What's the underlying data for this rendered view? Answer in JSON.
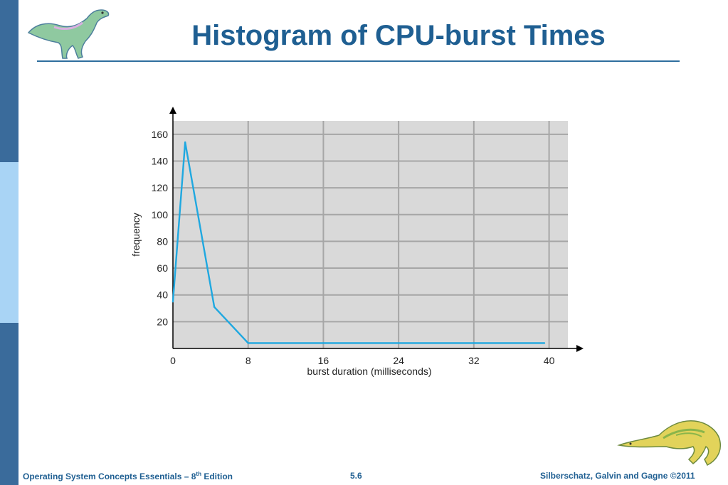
{
  "slide": {
    "title": "Histogram of CPU-burst Times",
    "footer_left_prefix": "Operating System Concepts Essentials – 8",
    "footer_left_sup": "th",
    "footer_left_suffix": " Edition",
    "footer_center": "5.6",
    "footer_right": "Silberschatz, Galvin and Gagne ©2011"
  },
  "logos": {
    "top_left": "dinosaur-icon",
    "bottom_right": "dinosaur-icon"
  },
  "colors": {
    "title": "#1f5f92",
    "sidebar_dark": "#3a6b9b",
    "sidebar_light": "#a9d4f5",
    "plot_background": "#d9d9d9",
    "grid": "#a6a6a6",
    "line": "#1fa8e0"
  },
  "chart_data": {
    "type": "line",
    "xlabel": "burst duration (milliseconds)",
    "ylabel": "frequency",
    "xlim": [
      0,
      42
    ],
    "ylim": [
      0,
      170
    ],
    "xticks": [
      0,
      8,
      16,
      24,
      32,
      40
    ],
    "yticks": [
      20,
      40,
      60,
      80,
      100,
      120,
      140,
      160
    ],
    "grid": true,
    "series": [
      {
        "x": [
          0,
          1.3,
          4.4,
          8,
          16,
          24,
          32,
          39.5
        ],
        "y": [
          35,
          154,
          31,
          4,
          4,
          4,
          4,
          4
        ]
      }
    ]
  }
}
